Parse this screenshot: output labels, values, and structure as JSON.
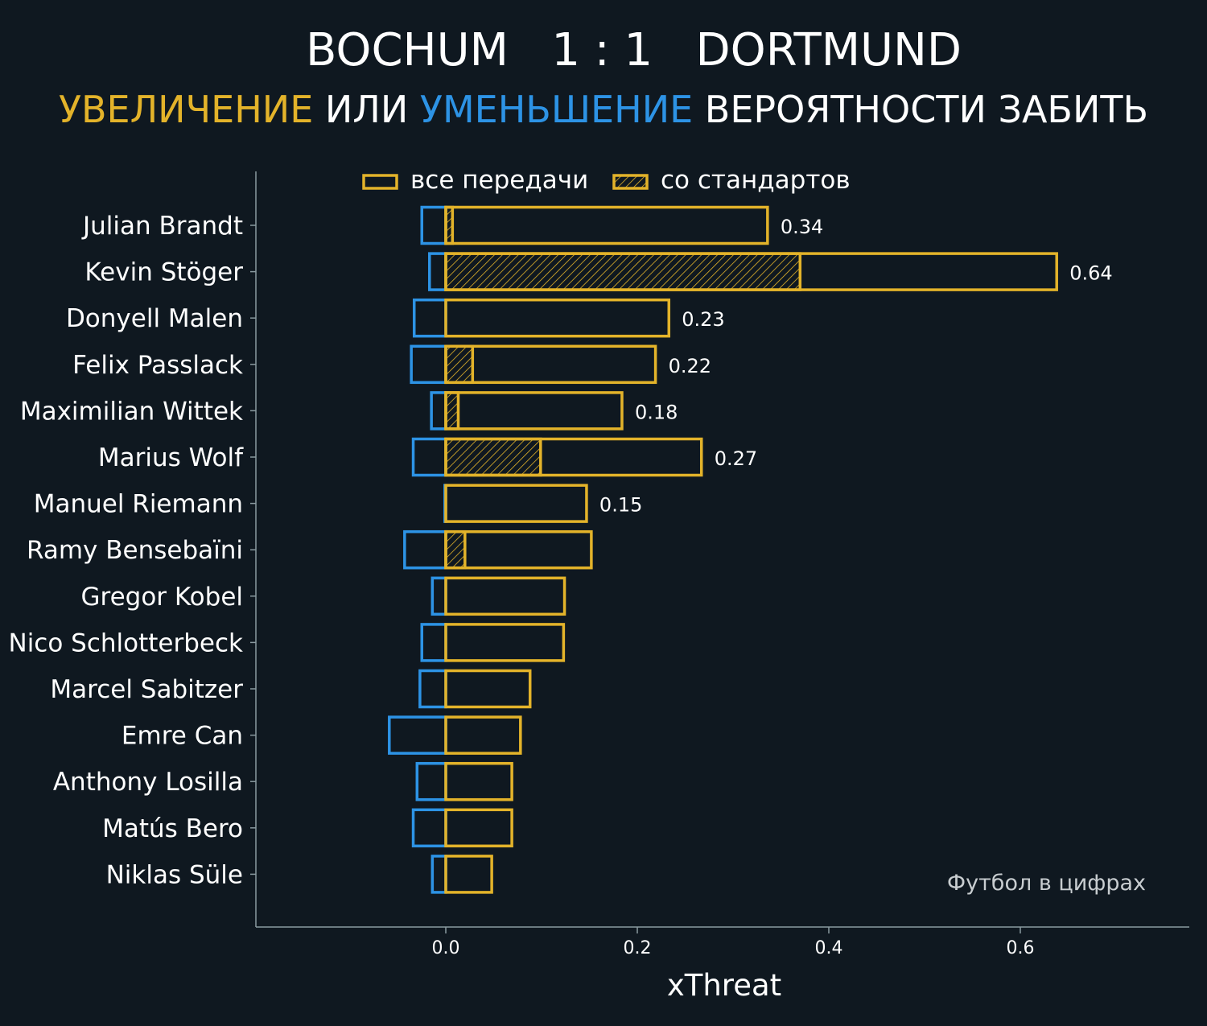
{
  "header": {
    "title": "BOCHUM   1 : 1   DORTMUND",
    "subtitle_increase": "УВЕЛИЧЕНИЕ",
    "subtitle_or": " ИЛИ ",
    "subtitle_decrease": "УМЕНЬШЕНИЕ",
    "subtitle_rest": " ВЕРОЯТНОСТИ ЗАБИТЬ"
  },
  "colors": {
    "background": "#0f1820",
    "increase": "#e3b32a",
    "decrease": "#2d93e5",
    "axis": "#8a9aa0",
    "text": "#ffffff",
    "watermark": "#c8cdd0"
  },
  "chart_data": {
    "type": "bar",
    "orientation": "horizontal",
    "xlabel": "xThreat",
    "xlim": [
      -0.2,
      0.78
    ],
    "xticks": [
      "0.0",
      "0.2",
      "0.4",
      "0.6"
    ],
    "xtick_values": [
      0.0,
      0.2,
      0.4,
      0.6
    ],
    "legend": {
      "position": "top",
      "all_passes": "все передачи",
      "set_pieces": "со стандартов"
    },
    "watermark": "Футбол в цифрах",
    "categories": [
      "Julian Brandt",
      "Kevin Stöger",
      "Donyell Malen",
      "Felix Passlack",
      "Maximilian Wittek",
      "Marius Wolf",
      "Manuel Riemann",
      "Ramy Bensebaïni",
      "Gregor Kobel",
      "Nico Schlotterbeck",
      "Marcel Sabitzer",
      "Emre Can",
      "Anthony Losilla",
      "Matús Bero",
      "Niklas Süle"
    ],
    "series": [
      {
        "name": "все передачи (увеличение)",
        "values": [
          0.336,
          0.638,
          0.233,
          0.219,
          0.184,
          0.267,
          0.147,
          0.152,
          0.124,
          0.123,
          0.088,
          0.078,
          0.069,
          0.069,
          0.048
        ]
      },
      {
        "name": "со стандартов (увеличение)",
        "values": [
          0.007,
          0.37,
          0.0,
          0.028,
          0.013,
          0.099,
          0.0,
          0.02,
          0.0,
          0.0,
          0.0,
          0.0,
          0.0,
          0.0,
          0.0
        ]
      },
      {
        "name": "все передачи (уменьшение)",
        "values": [
          -0.025,
          -0.017,
          -0.033,
          -0.036,
          -0.015,
          -0.034,
          -0.001,
          -0.043,
          -0.014,
          -0.025,
          -0.027,
          -0.059,
          -0.03,
          -0.034,
          -0.014
        ]
      }
    ],
    "data_labels": [
      "0.34",
      "0.64",
      "0.23",
      "0.22",
      "0.18",
      "0.27",
      "0.15",
      "",
      "",
      "",
      "",
      "",
      "",
      "",
      ""
    ]
  }
}
